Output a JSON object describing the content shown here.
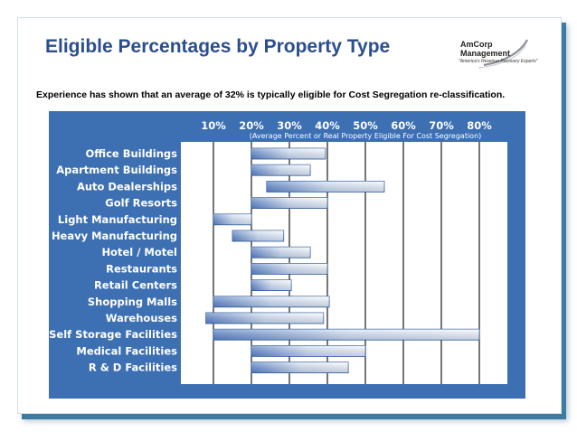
{
  "slide": {
    "title": "Eligible Percentages by Property Type",
    "subtitle": "Experience has shown that an average of 32% is typically eligible for Cost Segregation re-classification."
  },
  "logo": {
    "line1": "AmCorp",
    "line2": "Management",
    "tagline": "\"America's Revenue Recovery Experts\""
  },
  "chart_data": {
    "type": "bar",
    "orientation": "horizontal-range",
    "title": "Eligible Percentages by Property Type",
    "xlabel": "(Average Percent or Real Property  Eligible For Cost Segregation)",
    "xlim": [
      0,
      85
    ],
    "ticks": [
      "10%",
      "20%",
      "30%",
      "40%",
      "50%",
      "60%",
      "70%",
      "80%"
    ],
    "tick_values": [
      10,
      20,
      30,
      40,
      50,
      60,
      70,
      80
    ],
    "categories": [
      "Office Buildings",
      "Apartment Buildings",
      "Auto Dealerships",
      "Golf Resorts",
      "Light Manufacturing",
      "Heavy Manufacturing",
      "Hotel / Motel",
      "Restaurants",
      "Retail Centers",
      "Shopping Malls",
      "Warehouses",
      "Self Storage Facilities",
      "Medical Facilities",
      "R & D Facilities"
    ],
    "ranges": [
      [
        20,
        39.5
      ],
      [
        20,
        35.5
      ],
      [
        24,
        55
      ],
      [
        20,
        40
      ],
      [
        10,
        20
      ],
      [
        15,
        28.5
      ],
      [
        20,
        35.5
      ],
      [
        20,
        40
      ],
      [
        20,
        30.5
      ],
      [
        10,
        40.5
      ],
      [
        8,
        39
      ],
      [
        10,
        80
      ],
      [
        20,
        50
      ],
      [
        20,
        45.5
      ]
    ],
    "grid": true
  }
}
